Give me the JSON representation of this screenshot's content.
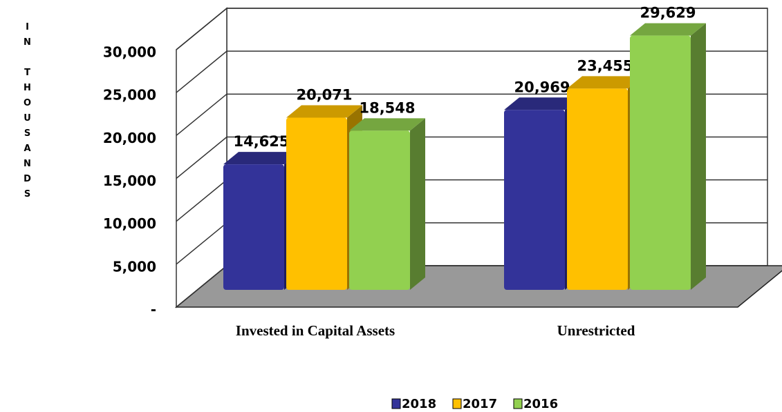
{
  "chart_data": {
    "type": "bar3d",
    "y_axis_label": "IN THOUSANDS",
    "categories": [
      "Invested in Capital Assets",
      "Unrestricted"
    ],
    "series": [
      {
        "name": "2018",
        "color": "#333399",
        "values": [
          14625,
          20969
        ],
        "value_labels": [
          "14,625",
          "20,969"
        ]
      },
      {
        "name": "2017",
        "color": "#ffc000",
        "values": [
          20071,
          23455
        ],
        "value_labels": [
          "20,071",
          "23,455"
        ]
      },
      {
        "name": "2016",
        "color": "#92d050",
        "values": [
          18548,
          29629
        ],
        "value_labels": [
          "18,548",
          "29,629"
        ]
      }
    ],
    "ylim": [
      0,
      30000
    ],
    "yticks": [
      {
        "value": 0,
        "label": "-"
      },
      {
        "value": 5000,
        "label": "5,000"
      },
      {
        "value": 10000,
        "label": "10,000"
      },
      {
        "value": 15000,
        "label": "15,000"
      },
      {
        "value": 20000,
        "label": "20,000"
      },
      {
        "value": 25000,
        "label": "25,000"
      },
      {
        "value": 30000,
        "label": "30,000"
      }
    ],
    "grid": true,
    "legend": "bottom"
  }
}
